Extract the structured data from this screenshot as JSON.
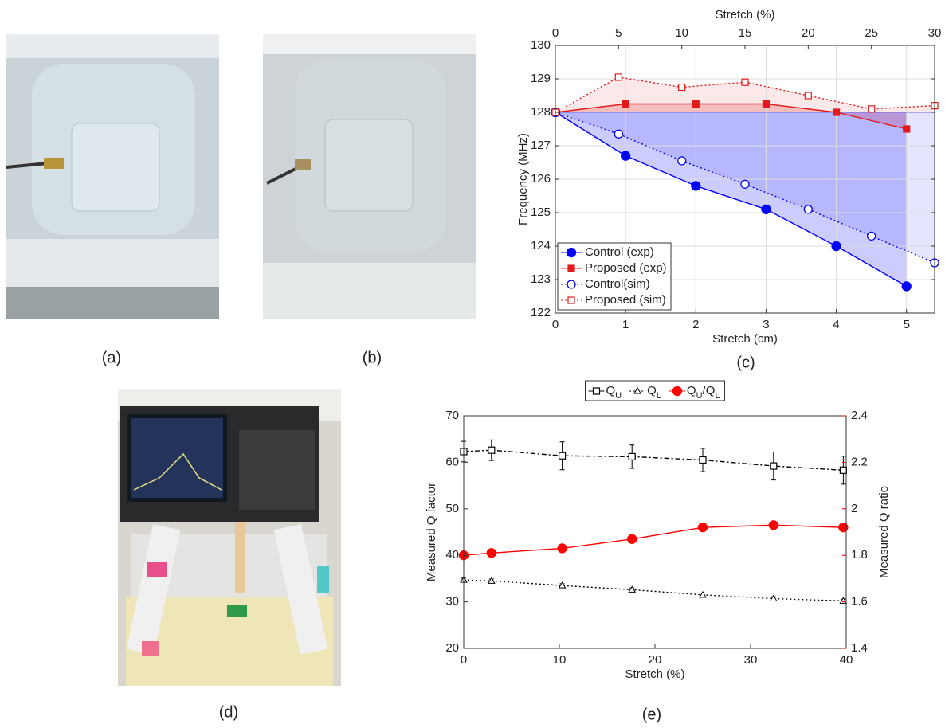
{
  "panel_labels": [
    "(a)",
    "(b)",
    "(c)",
    "(d)",
    "(e)"
  ],
  "chart_data": [
    {
      "type": "line",
      "xlabel": "Stretch (cm)",
      "x2label": "Stretch (%)",
      "ylabel": "Frequency (MHz)",
      "xlim": [
        0,
        5.4
      ],
      "xticks": [
        0,
        1,
        2,
        3,
        4,
        5
      ],
      "x2lim": [
        0,
        30
      ],
      "x2ticks": [
        0,
        5,
        10,
        15,
        20,
        25,
        30
      ],
      "ylim": [
        122,
        130
      ],
      "yticks": [
        122,
        123,
        124,
        125,
        126,
        127,
        128,
        129,
        130
      ],
      "grid": true,
      "legend": "lower left",
      "series": [
        {
          "name": "Control (exp)",
          "color": "#0000ff",
          "marker": "circle",
          "filled": true,
          "style": "solid",
          "fill": true,
          "x": [
            0,
            1,
            2,
            3,
            4,
            5
          ],
          "values": [
            128,
            126.7,
            125.8,
            125.1,
            124.0,
            122.8
          ]
        },
        {
          "name": "Proposed (exp)",
          "color": "#e31a1c",
          "marker": "square",
          "filled": true,
          "style": "solid",
          "fill": true,
          "x": [
            0,
            1,
            2,
            3,
            4,
            5
          ],
          "values": [
            128,
            128.25,
            128.25,
            128.25,
            128,
            127.5
          ]
        },
        {
          "name": "Control(sim)",
          "color": "#0000ff",
          "marker": "circle",
          "filled": false,
          "style": "dotted",
          "fill": true,
          "xaxis": "x2",
          "x": [
            0,
            5,
            10,
            15,
            20,
            25,
            30
          ],
          "values": [
            128,
            127.35,
            126.55,
            125.85,
            125.1,
            124.3,
            123.5
          ]
        },
        {
          "name": "Proposed (sim)",
          "color": "#e31a1c",
          "marker": "square",
          "filled": false,
          "style": "dotted",
          "fill": true,
          "xaxis": "x2",
          "x": [
            0,
            5,
            10,
            15,
            20,
            25,
            30
          ],
          "values": [
            128,
            129.05,
            128.75,
            128.9,
            128.5,
            128.1,
            128.2
          ]
        }
      ]
    },
    {
      "type": "line",
      "xlabel": "Stretch (%)",
      "ylabel": "Measured Q factor",
      "y2label": "Measured Q ratio",
      "y2color": "#e00000",
      "xlim": [
        0,
        40
      ],
      "xticks": [
        0,
        10,
        20,
        30,
        40
      ],
      "ylim": [
        20,
        70
      ],
      "yticks": [
        20,
        30,
        40,
        50,
        60,
        70
      ],
      "y2lim": [
        1.4,
        2.4
      ],
      "y2ticks": [
        1.4,
        1.6,
        1.8,
        2,
        2.2,
        2.4
      ],
      "grid": false,
      "legend": "top",
      "series": [
        {
          "name": "QU",
          "color": "#000000",
          "marker": "square",
          "filled": false,
          "style": "dashdot",
          "x": [
            0,
            2.9,
            10.3,
            17.6,
            25,
            32.4,
            39.7
          ],
          "values": [
            62.3,
            62.6,
            61.4,
            61.2,
            60.5,
            59.2,
            58.3
          ],
          "errors": [
            2.2,
            2.2,
            3,
            2.5,
            2.5,
            3,
            3
          ]
        },
        {
          "name": "QL",
          "color": "#000000",
          "marker": "triangle",
          "filled": false,
          "style": "dotted",
          "x": [
            0,
            2.9,
            10.3,
            17.6,
            25,
            32.4,
            39.7
          ],
          "values": [
            34.7,
            34.5,
            33.5,
            32.6,
            31.5,
            30.7,
            30.2
          ],
          "errors": [
            0.4,
            0.4,
            0.4,
            0.4,
            0.4,
            0.4,
            0.4
          ]
        },
        {
          "name": "QU/QL",
          "color": "#ff0000",
          "marker": "circle",
          "filled": true,
          "style": "solid",
          "axis": "y2",
          "x": [
            0,
            2.9,
            10.3,
            17.6,
            25,
            32.4,
            39.7
          ],
          "values": [
            1.8,
            1.81,
            1.83,
            1.87,
            1.92,
            1.93,
            1.92
          ]
        }
      ]
    }
  ]
}
